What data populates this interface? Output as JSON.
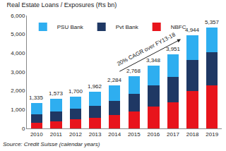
{
  "chart_data": {
    "type": "bar",
    "title": "Real Estate Loans / Exposures (Rs bn)",
    "categories": [
      "2010",
      "2011",
      "2012",
      "2013",
      "2014",
      "2015",
      "2016",
      "2017",
      "2018",
      "2019"
    ],
    "series": [
      {
        "name": "NBFC",
        "color": "#e8141c",
        "values": [
          300,
          380,
          480,
          560,
          700,
          900,
          1150,
          1400,
          2000,
          2300
        ]
      },
      {
        "name": "Pvt Bank",
        "color": "#1f3864",
        "values": [
          450,
          520,
          560,
          650,
          780,
          950,
          1150,
          1350,
          1650,
          1750
        ]
      },
      {
        "name": "PSU Bank",
        "color": "#2eaef0",
        "values": [
          585,
          673,
          660,
          752,
          804,
          918,
          1048,
          1201,
          1294,
          1307
        ]
      }
    ],
    "stacked": true,
    "totals": [
      1335,
      1573,
      1700,
      1962,
      2284,
      2768,
      3348,
      3951,
      4944,
      5357
    ],
    "total_labels": [
      "1,335",
      "1,573",
      "1,700",
      "1,962",
      "2,284",
      "2,768",
      "3,348",
      "3,951",
      "4,944",
      "5,357"
    ],
    "annotations": [
      "20% CAGR over FY13-18"
    ],
    "source": "Source: Credit Suisse (calendar years)",
    "ylim": [
      0,
      6000
    ],
    "yticks": [
      0,
      {
        "value": 1000,
        "label": "1,000"
      },
      {
        "value": 2000,
        "label": "2,000"
      },
      {
        "value": 3000,
        "label": "3,000"
      },
      {
        "value": 4000,
        "label": "4,000"
      },
      {
        "value": 5000,
        "label": "5,000"
      },
      {
        "value": 6000,
        "label": "6,000"
      }
    ],
    "grid": false,
    "legend": "top left"
  }
}
